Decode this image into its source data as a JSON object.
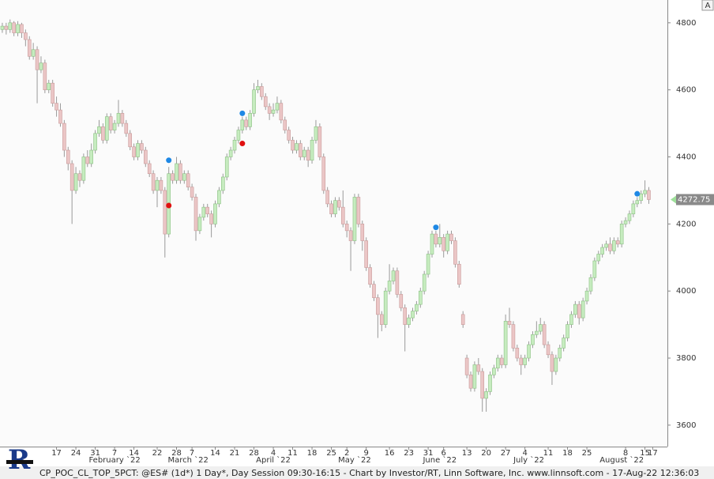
{
  "chart_data": {
    "type": "candlestick",
    "status_text": "CP_POC_CL_TOP_5PCT: @ES# (1d*) 1 Day*, Day Session 09:30-16:15 - Chart by Investor/RT, Linn Software, Inc. www.linnsoft.com - 17-Aug-22 12:36:03",
    "corner_button": "A",
    "up_color": "#c6ecbf",
    "down_color": "#ebc6c6",
    "wick_color": "#9a9a9a",
    "ylim": [
      3536,
      4868
    ],
    "yticks": [
      3600,
      3800,
      4000,
      4200,
      4400,
      4600,
      4800
    ],
    "xlim": [
      -0.6,
      171.8
    ],
    "xticks": [
      {
        "value": 14,
        "label": "17"
      },
      {
        "value": 19,
        "label": "24"
      },
      {
        "value": 24,
        "label": "31"
      },
      {
        "value": 29,
        "label": "7"
      },
      {
        "value": 34,
        "label": "14"
      },
      {
        "value": 40,
        "label": "22"
      },
      {
        "value": 45,
        "label": "28"
      },
      {
        "value": 49,
        "label": "7"
      },
      {
        "value": 55,
        "label": "14"
      },
      {
        "value": 60,
        "label": "21"
      },
      {
        "value": 65,
        "label": "28"
      },
      {
        "value": 70,
        "label": "4"
      },
      {
        "value": 75,
        "label": "11"
      },
      {
        "value": 80,
        "label": "18"
      },
      {
        "value": 85,
        "label": "25"
      },
      {
        "value": 89,
        "label": "2"
      },
      {
        "value": 94,
        "label": "9"
      },
      {
        "value": 100,
        "label": "16"
      },
      {
        "value": 105,
        "label": "23"
      },
      {
        "value": 110,
        "label": "31"
      },
      {
        "value": 114,
        "label": "6"
      },
      {
        "value": 120,
        "label": "13"
      },
      {
        "value": 125,
        "label": "20"
      },
      {
        "value": 130,
        "label": "27"
      },
      {
        "value": 135,
        "label": "4"
      },
      {
        "value": 141,
        "label": "11"
      },
      {
        "value": 146,
        "label": "18"
      },
      {
        "value": 151,
        "label": "25"
      },
      {
        "value": 161,
        "label": "8"
      },
      {
        "value": 166,
        "label": "15"
      },
      {
        "value": 168,
        "label": "17"
      }
    ],
    "month_ticks": [
      {
        "value": 29,
        "label": "February `22"
      },
      {
        "value": 48,
        "label": "March `22"
      },
      {
        "value": 70,
        "label": "April `22"
      },
      {
        "value": 91,
        "label": "May `22"
      },
      {
        "value": 113,
        "label": "June `22"
      },
      {
        "value": 136,
        "label": "July `22"
      },
      {
        "value": 160,
        "label": "August `22"
      }
    ],
    "signals": [
      {
        "color": "#1e88e5",
        "x": [
          43,
          62,
          112,
          164
        ],
        "values": [
          4390,
          4530,
          4190,
          4290
        ]
      },
      {
        "color": "#e01010",
        "x": [
          43,
          62
        ],
        "values": [
          4255,
          4440
        ]
      }
    ],
    "ohlc": [
      [
        4780,
        4800,
        4770,
        4790
      ],
      [
        4790,
        4800,
        4765,
        4780
      ],
      [
        4780,
        4810,
        4770,
        4800
      ],
      [
        4800,
        4805,
        4760,
        4770
      ],
      [
        4770,
        4805,
        4760,
        4795
      ],
      [
        4795,
        4800,
        4755,
        4770
      ],
      [
        4770,
        4780,
        4730,
        4750
      ],
      [
        4750,
        4760,
        4690,
        4700
      ],
      [
        4700,
        4740,
        4690,
        4720
      ],
      [
        4720,
        4730,
        4560,
        4660
      ],
      [
        4660,
        4700,
        4650,
        4680
      ],
      [
        4680,
        4690,
        4590,
        4600
      ],
      [
        4600,
        4630,
        4590,
        4620
      ],
      [
        4620,
        4630,
        4550,
        4560
      ],
      [
        4560,
        4580,
        4520,
        4540
      ],
      [
        4540,
        4560,
        4490,
        4500
      ],
      [
        4500,
        4510,
        4400,
        4420
      ],
      [
        4420,
        4430,
        4360,
        4380
      ],
      [
        4380,
        4390,
        4200,
        4300
      ],
      [
        4300,
        4370,
        4290,
        4350
      ],
      [
        4350,
        4360,
        4310,
        4330
      ],
      [
        4330,
        4410,
        4320,
        4400
      ],
      [
        4400,
        4420,
        4370,
        4380
      ],
      [
        4380,
        4440,
        4370,
        4420
      ],
      [
        4420,
        4480,
        4410,
        4470
      ],
      [
        4470,
        4510,
        4460,
        4490
      ],
      [
        4490,
        4500,
        4440,
        4450
      ],
      [
        4450,
        4530,
        4440,
        4520
      ],
      [
        4520,
        4530,
        4470,
        4480
      ],
      [
        4480,
        4510,
        4470,
        4500
      ],
      [
        4500,
        4570,
        4490,
        4530
      ],
      [
        4530,
        4540,
        4490,
        4500
      ],
      [
        4500,
        4510,
        4460,
        4470
      ],
      [
        4470,
        4480,
        4420,
        4430
      ],
      [
        4430,
        4440,
        4390,
        4400
      ],
      [
        4400,
        4450,
        4390,
        4440
      ],
      [
        4440,
        4450,
        4410,
        4420
      ],
      [
        4420,
        4430,
        4370,
        4380
      ],
      [
        4380,
        4390,
        4340,
        4350
      ],
      [
        4350,
        4360,
        4290,
        4300
      ],
      [
        4300,
        4340,
        4250,
        4330
      ],
      [
        4330,
        4340,
        4290,
        4300
      ],
      [
        4300,
        4310,
        4100,
        4170
      ],
      [
        4170,
        4370,
        4160,
        4350
      ],
      [
        4350,
        4360,
        4320,
        4330
      ],
      [
        4330,
        4400,
        4320,
        4380
      ],
      [
        4380,
        4390,
        4320,
        4330
      ],
      [
        4330,
        4360,
        4320,
        4350
      ],
      [
        4350,
        4360,
        4300,
        4310
      ],
      [
        4310,
        4320,
        4270,
        4280
      ],
      [
        4280,
        4290,
        4150,
        4180
      ],
      [
        4180,
        4230,
        4170,
        4220
      ],
      [
        4220,
        4260,
        4210,
        4250
      ],
      [
        4250,
        4260,
        4220,
        4230
      ],
      [
        4230,
        4240,
        4160,
        4200
      ],
      [
        4200,
        4270,
        4190,
        4260
      ],
      [
        4260,
        4310,
        4250,
        4300
      ],
      [
        4300,
        4350,
        4290,
        4340
      ],
      [
        4340,
        4410,
        4330,
        4400
      ],
      [
        4400,
        4430,
        4390,
        4420
      ],
      [
        4420,
        4460,
        4410,
        4450
      ],
      [
        4450,
        4490,
        4440,
        4480
      ],
      [
        4480,
        4520,
        4470,
        4510
      ],
      [
        4510,
        4520,
        4480,
        4490
      ],
      [
        4490,
        4540,
        4480,
        4530
      ],
      [
        4530,
        4620,
        4520,
        4600
      ],
      [
        4600,
        4630,
        4590,
        4610
      ],
      [
        4610,
        4620,
        4570,
        4580
      ],
      [
        4580,
        4590,
        4540,
        4550
      ],
      [
        4550,
        4560,
        4510,
        4530
      ],
      [
        4530,
        4560,
        4520,
        4540
      ],
      [
        4540,
        4580,
        4530,
        4560
      ],
      [
        4560,
        4570,
        4500,
        4510
      ],
      [
        4510,
        4520,
        4470,
        4480
      ],
      [
        4480,
        4490,
        4440,
        4450
      ],
      [
        4450,
        4460,
        4410,
        4420
      ],
      [
        4420,
        4450,
        4410,
        4440
      ],
      [
        4440,
        4450,
        4390,
        4400
      ],
      [
        4400,
        4430,
        4390,
        4420
      ],
      [
        4420,
        4430,
        4370,
        4390
      ],
      [
        4390,
        4460,
        4380,
        4450
      ],
      [
        4450,
        4510,
        4440,
        4490
      ],
      [
        4490,
        4500,
        4390,
        4400
      ],
      [
        4400,
        4410,
        4290,
        4300
      ],
      [
        4300,
        4310,
        4250,
        4260
      ],
      [
        4260,
        4270,
        4220,
        4230
      ],
      [
        4230,
        4280,
        4220,
        4270
      ],
      [
        4270,
        4280,
        4240,
        4250
      ],
      [
        4250,
        4300,
        4190,
        4200
      ],
      [
        4200,
        4210,
        4160,
        4180
      ],
      [
        4180,
        4190,
        4060,
        4150
      ],
      [
        4150,
        4290,
        4140,
        4280
      ],
      [
        4280,
        4290,
        4190,
        4200
      ],
      [
        4200,
        4210,
        4120,
        4150
      ],
      [
        4150,
        4160,
        4060,
        4070
      ],
      [
        4070,
        4080,
        4010,
        4020
      ],
      [
        4020,
        4030,
        3970,
        3980
      ],
      [
        3980,
        3990,
        3860,
        3930
      ],
      [
        3930,
        3940,
        3880,
        3900
      ],
      [
        3900,
        4010,
        3890,
        4000
      ],
      [
        4000,
        4080,
        3990,
        4030
      ],
      [
        4030,
        4070,
        4020,
        4060
      ],
      [
        4060,
        4070,
        3980,
        3990
      ],
      [
        3990,
        4000,
        3940,
        3950
      ],
      [
        3950,
        3960,
        3820,
        3900
      ],
      [
        3900,
        3930,
        3890,
        3920
      ],
      [
        3920,
        3950,
        3910,
        3940
      ],
      [
        3940,
        3970,
        3930,
        3960
      ],
      [
        3960,
        4010,
        3950,
        4000
      ],
      [
        4000,
        4060,
        3990,
        4050
      ],
      [
        4050,
        4120,
        4040,
        4110
      ],
      [
        4110,
        4180,
        4100,
        4170
      ],
      [
        4170,
        4180,
        4130,
        4140
      ],
      [
        4140,
        4200,
        4130,
        4160
      ],
      [
        4160,
        4170,
        4100,
        4120
      ],
      [
        4120,
        4180,
        4110,
        4170
      ],
      [
        4170,
        4180,
        4140,
        4150
      ],
      [
        4150,
        4160,
        4070,
        4080
      ],
      [
        4080,
        4090,
        4010,
        4020
      ],
      [
        3930,
        3940,
        3890,
        3900
      ],
      [
        3800,
        3810,
        3740,
        3750
      ],
      [
        3750,
        3760,
        3700,
        3710
      ],
      [
        3710,
        3790,
        3700,
        3780
      ],
      [
        3780,
        3800,
        3750,
        3760
      ],
      [
        3760,
        3770,
        3640,
        3680
      ],
      [
        3680,
        3710,
        3640,
        3700
      ],
      [
        3700,
        3760,
        3690,
        3750
      ],
      [
        3750,
        3780,
        3740,
        3770
      ],
      [
        3770,
        3810,
        3760,
        3800
      ],
      [
        3800,
        3810,
        3770,
        3780
      ],
      [
        3780,
        3930,
        3770,
        3910
      ],
      [
        3910,
        3950,
        3890,
        3900
      ],
      [
        3900,
        3910,
        3820,
        3830
      ],
      [
        3830,
        3840,
        3790,
        3800
      ],
      [
        3800,
        3810,
        3750,
        3780
      ],
      [
        3780,
        3810,
        3770,
        3800
      ],
      [
        3800,
        3850,
        3790,
        3840
      ],
      [
        3840,
        3880,
        3830,
        3870
      ],
      [
        3870,
        3910,
        3860,
        3880
      ],
      [
        3880,
        3920,
        3870,
        3900
      ],
      [
        3900,
        3910,
        3830,
        3840
      ],
      [
        3840,
        3850,
        3800,
        3810
      ],
      [
        3810,
        3820,
        3720,
        3760
      ],
      [
        3760,
        3810,
        3750,
        3800
      ],
      [
        3800,
        3840,
        3790,
        3830
      ],
      [
        3830,
        3870,
        3820,
        3860
      ],
      [
        3860,
        3910,
        3850,
        3900
      ],
      [
        3900,
        3940,
        3890,
        3930
      ],
      [
        3930,
        3970,
        3920,
        3960
      ],
      [
        3960,
        3970,
        3900,
        3920
      ],
      [
        3920,
        3980,
        3910,
        3970
      ],
      [
        3970,
        4010,
        3960,
        4000
      ],
      [
        4000,
        4050,
        3990,
        4040
      ],
      [
        4040,
        4100,
        4030,
        4090
      ],
      [
        4090,
        4120,
        4080,
        4110
      ],
      [
        4110,
        4140,
        4100,
        4130
      ],
      [
        4130,
        4150,
        4120,
        4140
      ],
      [
        4140,
        4160,
        4110,
        4120
      ],
      [
        4120,
        4160,
        4110,
        4150
      ],
      [
        4150,
        4160,
        4130,
        4140
      ],
      [
        4140,
        4210,
        4130,
        4200
      ],
      [
        4200,
        4220,
        4190,
        4210
      ],
      [
        4210,
        4240,
        4200,
        4230
      ],
      [
        4230,
        4270,
        4220,
        4260
      ],
      [
        4260,
        4280,
        4250,
        4270
      ],
      [
        4270,
        4300,
        4260,
        4290
      ],
      [
        4290,
        4330,
        4280,
        4300
      ],
      [
        4300,
        4310,
        4260,
        4272.75
      ]
    ]
  }
}
